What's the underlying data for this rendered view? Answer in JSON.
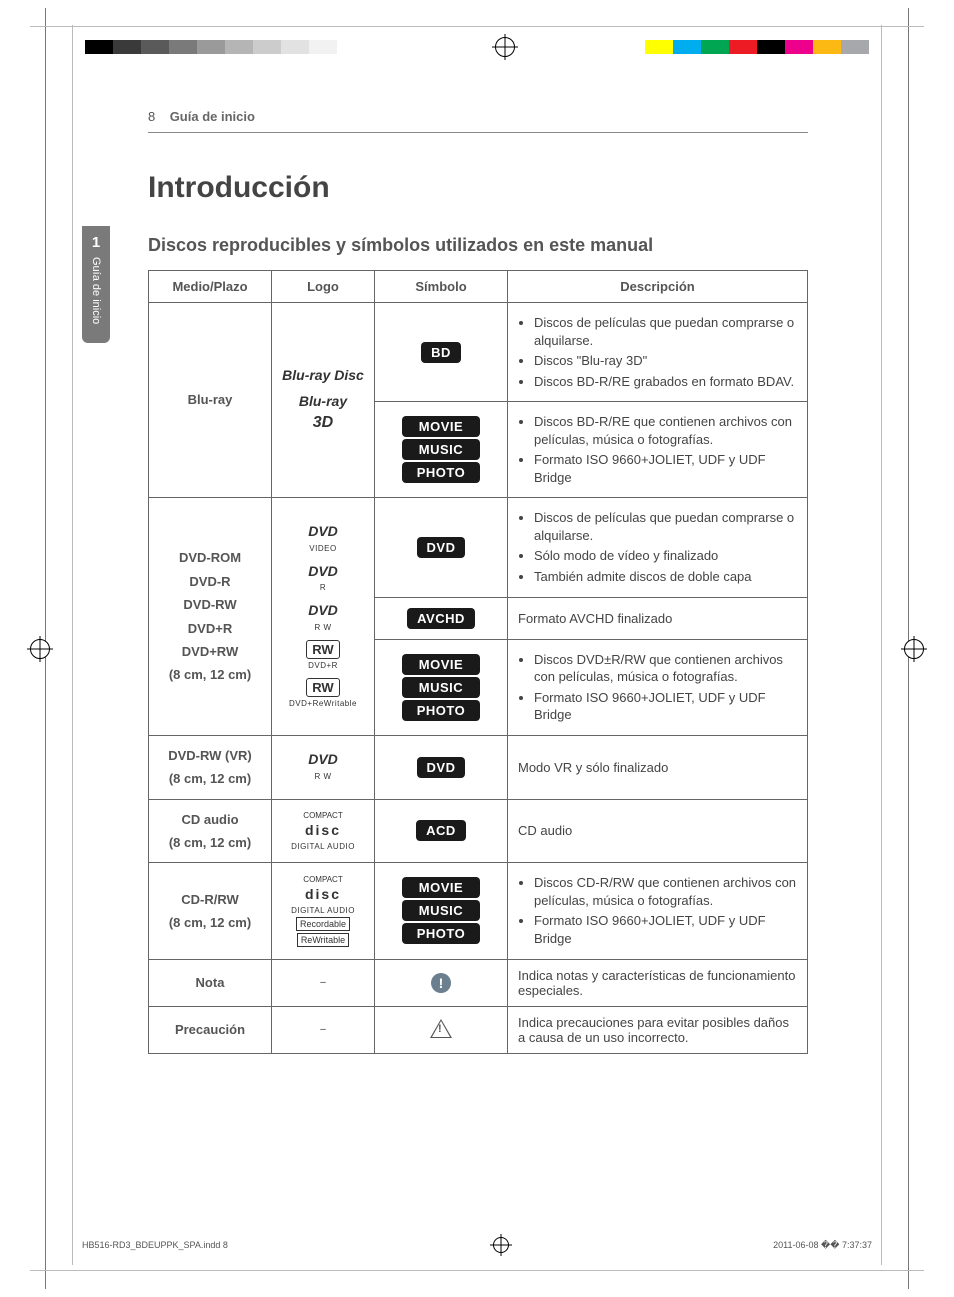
{
  "page": {
    "number": "8",
    "breadcrumb": "Guía de inicio",
    "title": "Introducción",
    "subtitle": "Discos reproducibles y símbolos utilizados en este manual"
  },
  "side_tab": {
    "number": "1",
    "label": "Guía de inicio"
  },
  "reg_bars": {
    "grays": [
      "#000000",
      "#3a3a3a",
      "#5a5a5a",
      "#7a7a7a",
      "#9a9a9a",
      "#b5b5b5",
      "#cccccc",
      "#e2e2e2",
      "#f2f2f2",
      "#ffffff"
    ],
    "colors": [
      "#ffff00",
      "#00aeef",
      "#00a651",
      "#ed1c24",
      "#000000",
      "#ec008c",
      "#fdb913",
      "#a6a8ab"
    ]
  },
  "table": {
    "headers": {
      "media": "Medio/Plazo",
      "logo": "Logo",
      "symbol": "Símbolo",
      "desc": "Descripción"
    },
    "rows": {
      "bluray": {
        "media": "Blu-ray",
        "logos": [
          {
            "main": "Blu-ray Disc",
            "style": "italic"
          },
          {
            "main": "Blu-ray",
            "sub": "3D",
            "style": "italic"
          }
        ],
        "cells": [
          {
            "symbol": "BD",
            "desc_list": [
              "Discos de películas que puedan comprarse o alquilarse.",
              "Discos \"Blu-ray 3D\"",
              "Discos BD-R/RE grabados en formato BDAV."
            ]
          },
          {
            "symbol_stack": [
              "MOVIE",
              "MUSIC",
              "PHOTO"
            ],
            "desc_list": [
              "Discos BD-R/RE que contienen archivos con películas, música o fotografías.",
              "Formato ISO 9660+JOLIET, UDF y UDF Bridge"
            ]
          }
        ]
      },
      "dvd": {
        "media_lines": [
          "DVD-ROM",
          "DVD-R",
          "DVD-RW",
          "DVD+R",
          "DVD+RW",
          "(8 cm, 12 cm)"
        ],
        "logos": [
          {
            "main": "DVD",
            "sub": "VIDEO"
          },
          {
            "main": "DVD",
            "sub": "R"
          },
          {
            "main": "DVD",
            "sub": "R W"
          },
          {
            "main": "RW",
            "sub": "DVD+R",
            "boxed": true
          },
          {
            "main": "RW",
            "sub": "DVD+ReWritable",
            "boxed": true
          }
        ],
        "cells": [
          {
            "symbol": "DVD",
            "desc_list": [
              "Discos de películas que puedan comprarse o alquilarse.",
              "Sólo modo de vídeo y finalizado",
              "También admite discos de doble capa"
            ]
          },
          {
            "symbol": "AVCHD",
            "desc_text": "Formato AVCHD finalizado"
          },
          {
            "symbol_stack": [
              "MOVIE",
              "MUSIC",
              "PHOTO"
            ],
            "desc_list": [
              "Discos DVD±R/RW que contienen archivos con películas, música o fotografías.",
              "Formato ISO 9660+JOLIET, UDF y UDF Bridge"
            ]
          }
        ]
      },
      "dvdrw_vr": {
        "media_lines": [
          "DVD-RW (VR)",
          "(8 cm, 12 cm)"
        ],
        "logo": {
          "main": "DVD",
          "sub": "R W"
        },
        "symbol": "DVD",
        "desc_text": "Modo VR y sólo finalizado"
      },
      "cd_audio": {
        "media_lines": [
          "CD audio",
          "(8 cm, 12 cm)"
        ],
        "logo": {
          "main": "disc",
          "sup": "COMPACT",
          "sub": "DIGITAL AUDIO"
        },
        "symbol": "ACD",
        "desc_text": "CD audio"
      },
      "cdrrw": {
        "media_lines": [
          "CD-R/RW",
          "(8 cm, 12 cm)"
        ],
        "logo": {
          "main": "disc",
          "sup": "COMPACT",
          "sub": "DIGITAL AUDIO",
          "extra": [
            "Recordable",
            "ReWritable"
          ]
        },
        "symbol_stack": [
          "MOVIE",
          "MUSIC",
          "PHOTO"
        ],
        "desc_list": [
          "Discos CD-R/RW que contienen archivos con películas, música o fotografías.",
          "Formato ISO 9660+JOLIET, UDF y UDF Bridge"
        ]
      },
      "nota": {
        "media": "Nota",
        "logo": "–",
        "desc_text": "Indica notas y características de funcionamiento especiales."
      },
      "precaucion": {
        "media": "Precaución",
        "logo": "–",
        "desc_text": "Indica precauciones para evitar posibles daños a causa de un uso incorrecto."
      }
    }
  },
  "footer": {
    "file": "HB516-RD3_BDEUPPK_SPA.indd   8",
    "timestamp": "2011-06-08   �� 7:37:37"
  },
  "colors": {
    "text": "#444444",
    "muted": "#666666",
    "border": "#666666",
    "badge_bg": "#1a1a1a",
    "badge_fg": "#ffffff",
    "tab_bg": "#7a7a7a",
    "note_icon": "#6b7f8f"
  }
}
